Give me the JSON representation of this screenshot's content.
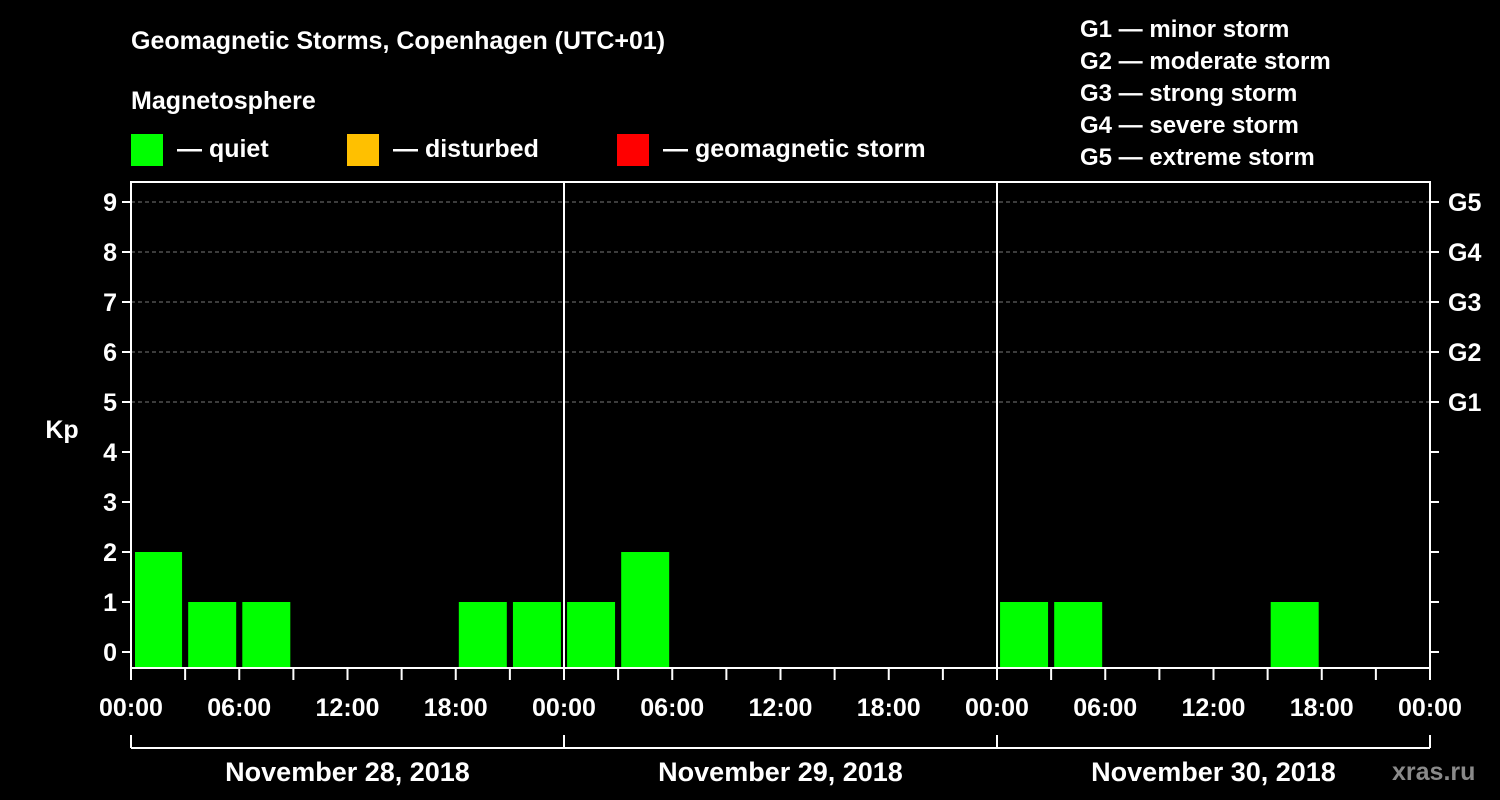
{
  "chart_data": {
    "type": "bar",
    "title": "Geomagnetic Storms, Copenhagen (UTC+01)",
    "legend_title": "Magnetosphere",
    "legend": [
      {
        "label": "— quiet",
        "color": "#00ff00"
      },
      {
        "label": "— disturbed",
        "color": "#ffc000"
      },
      {
        "label": "— geomagnetic storm",
        "color": "#ff0000"
      }
    ],
    "scale_legend": [
      "G1 — minor storm",
      "G2 — moderate storm",
      "G3 — strong storm",
      "G4 — severe storm",
      "G5 — extreme storm"
    ],
    "ylabel": "Kp",
    "ylim": [
      0,
      9
    ],
    "y_ticks": [
      "0",
      "1",
      "2",
      "3",
      "4",
      "5",
      "6",
      "7",
      "8",
      "9"
    ],
    "right_ticks": [
      {
        "kp": 5,
        "label": "G1"
      },
      {
        "kp": 6,
        "label": "G2"
      },
      {
        "kp": 7,
        "label": "G3"
      },
      {
        "kp": 8,
        "label": "G4"
      },
      {
        "kp": 9,
        "label": "G5"
      }
    ],
    "x_ticks": [
      "00:00",
      "06:00",
      "12:00",
      "18:00",
      "00:00",
      "06:00",
      "12:00",
      "18:00",
      "00:00",
      "06:00",
      "12:00",
      "18:00",
      "00:00"
    ],
    "days": [
      "November 28, 2018",
      "November 29, 2018",
      "November 30, 2018"
    ],
    "grid": true,
    "values": [
      2,
      1,
      1,
      0,
      0,
      0,
      1,
      1,
      1,
      2,
      0,
      0,
      0,
      0,
      0,
      0,
      1,
      1,
      0,
      0,
      0,
      1,
      0,
      0
    ],
    "watermark": "xras.ru"
  }
}
